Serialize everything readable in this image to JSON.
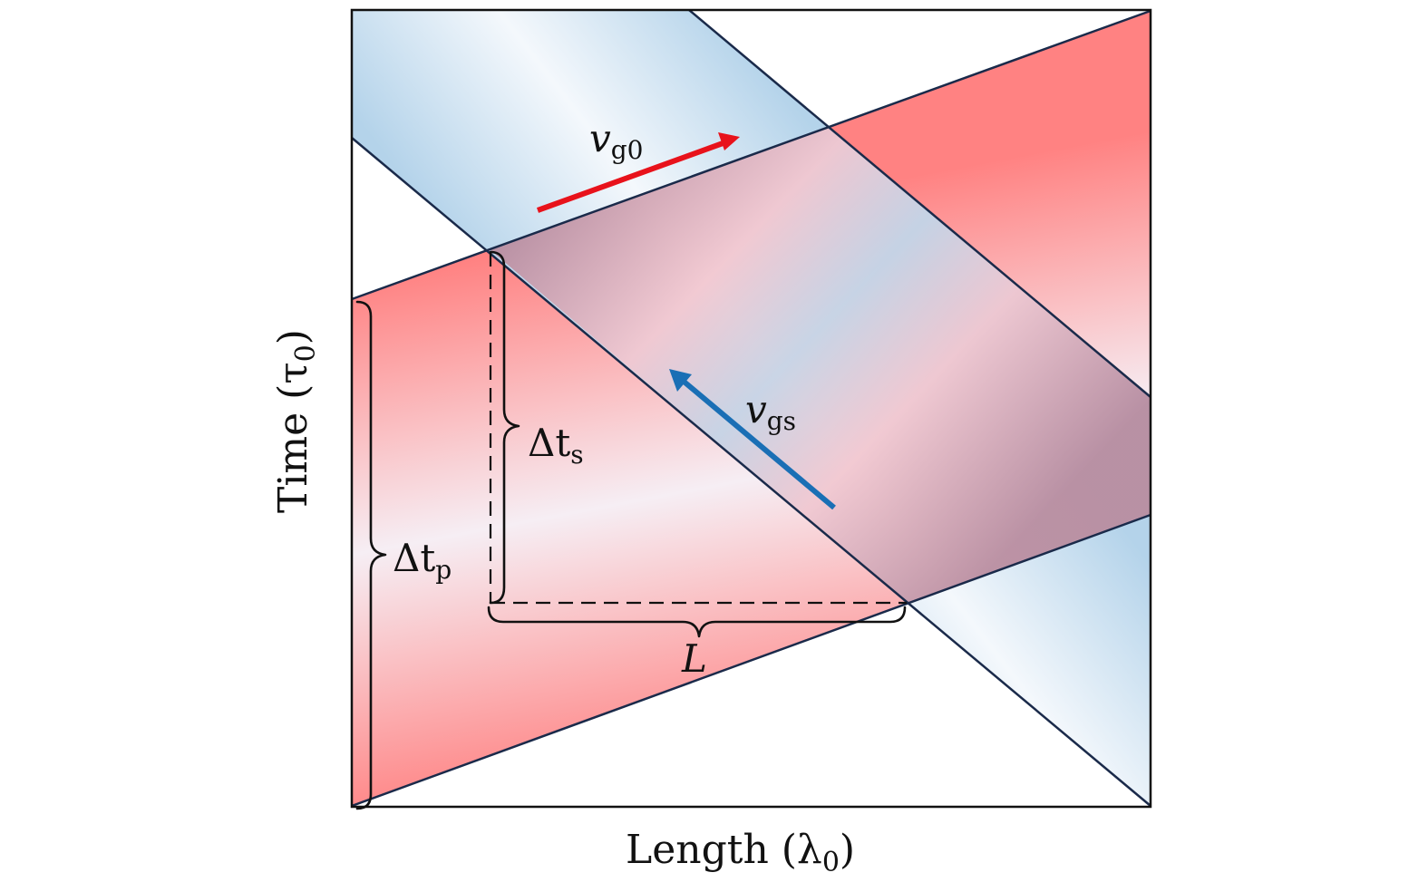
{
  "axes": {
    "x_label": "Length (λ",
    "x_label_sub": "0",
    "y_label": "Time (τ",
    "y_label_sub": "0"
  },
  "labels": {
    "vg0": {
      "main": "v",
      "sub": "g0"
    },
    "vgs": {
      "main": "v",
      "sub": "gs"
    },
    "dts": {
      "main": "Δt",
      "sub": "s"
    },
    "dtp": {
      "main": "Δt",
      "sub": "p"
    },
    "L": {
      "main": "L"
    }
  },
  "colors": {
    "pump_red": "#ff8080",
    "signal_blue": "#bcd8ec",
    "overlap_purple": "#b48c9e",
    "outline": "#1a2a4a",
    "red_arrow": "#e8121b",
    "blue_arrow": "#1a6fb5"
  }
}
